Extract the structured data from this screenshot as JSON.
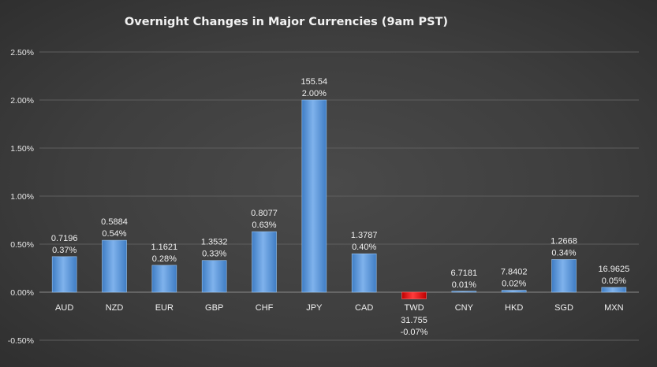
{
  "chart_data": {
    "type": "bar",
    "title": "Overnight Changes in Major Currencies (9am PST)",
    "categories": [
      "AUD",
      "NZD",
      "EUR",
      "GBP",
      "CHF",
      "JPY",
      "CAD",
      "TWD",
      "CNY",
      "HKD",
      "SGD",
      "MXN"
    ],
    "values": [
      0.37,
      0.54,
      0.28,
      0.33,
      0.63,
      2.0,
      0.4,
      -0.07,
      0.01,
      0.02,
      0.34,
      0.05
    ],
    "rates": [
      "0.7196",
      "0.5884",
      "1.1621",
      "1.3532",
      "0.8077",
      "155.54",
      "1.3787",
      "31.755",
      "6.7181",
      "7.8402",
      "1.2668",
      "16.9625"
    ],
    "value_labels": [
      "0.37%",
      "0.54%",
      "0.28%",
      "0.33%",
      "0.63%",
      "2.00%",
      "0.40%",
      "-0.07%",
      "0.01%",
      "0.02%",
      "0.34%",
      "0.05%"
    ],
    "ylim": [
      -0.5,
      2.5
    ],
    "yticks": [
      -0.5,
      0,
      0.5,
      1.0,
      1.5,
      2.0,
      2.5
    ],
    "ytick_labels": [
      "-0.50%",
      "0.00%",
      "0.50%",
      "1.00%",
      "1.50%",
      "2.00%",
      "2.50%"
    ],
    "grid": true,
    "legend": "none",
    "colors": {
      "positive": "#5b9bd5",
      "negative": "#e8191b"
    }
  }
}
